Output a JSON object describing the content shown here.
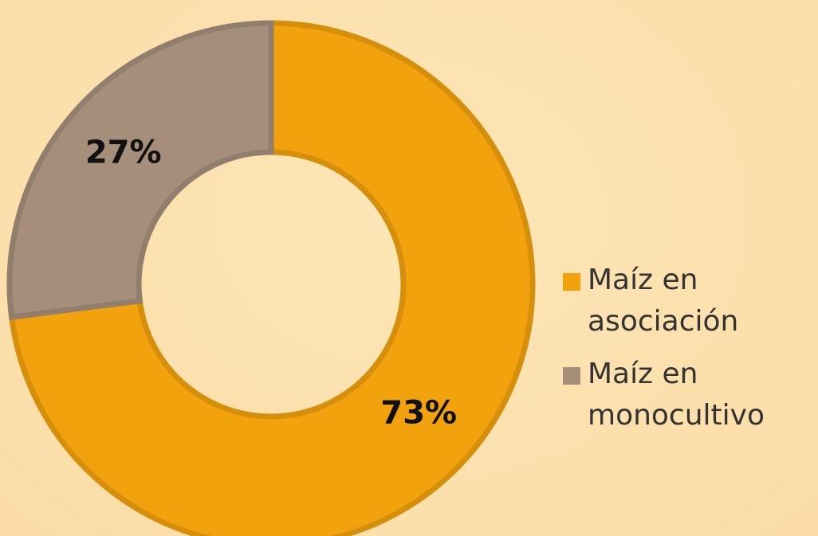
{
  "chart_data": {
    "type": "donut",
    "categories": [
      "Maíz en asociación",
      "Maíz en monocultivo"
    ],
    "values": [
      73,
      27
    ],
    "value_labels": [
      "73%",
      "27%"
    ],
    "colors": [
      "#f2a20c",
      "#a58f7b"
    ],
    "legend": "right"
  }
}
